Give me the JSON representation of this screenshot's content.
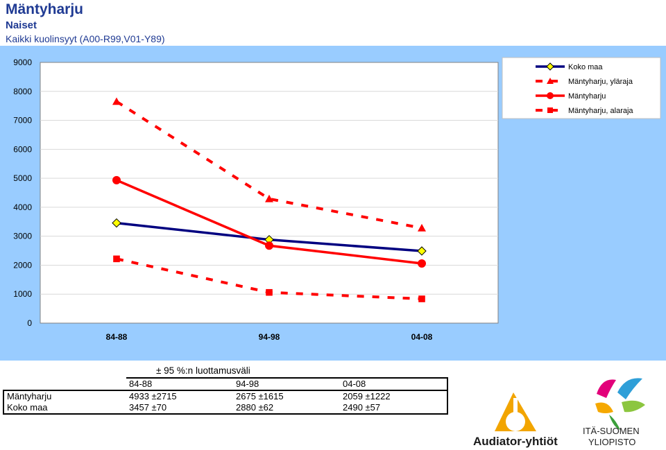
{
  "header": {
    "title": "Mäntyharju",
    "subtitle": "Naiset",
    "cause": "Kaikki kuolinsyyt (A00-R99,V01-Y89)"
  },
  "colors": {
    "background": "#99ccff",
    "plot_area": "#ffffff",
    "koko_maa": "#000080",
    "mantyharju": "#ff0000",
    "marker_diamond": "#ffff00"
  },
  "chart_data": {
    "type": "line",
    "categories": [
      "84-88",
      "94-98",
      "04-08"
    ],
    "ylim": [
      0,
      9000
    ],
    "yticks": [
      0,
      1000,
      2000,
      3000,
      4000,
      5000,
      6000,
      7000,
      8000,
      9000
    ],
    "grid": true,
    "legend_position": "top-right",
    "series": [
      {
        "name": "Koko maa",
        "values": [
          3457,
          2880,
          2490
        ],
        "color": "#000080",
        "style": "solid",
        "marker": "diamond"
      },
      {
        "name": "Mäntyharju, yläraja",
        "values": [
          7648,
          4290,
          3281
        ],
        "color": "#ff0000",
        "style": "dashed",
        "marker": "triangle"
      },
      {
        "name": "Mäntyharju",
        "values": [
          4933,
          2675,
          2059
        ],
        "color": "#ff0000",
        "style": "solid",
        "marker": "circle"
      },
      {
        "name": "Mäntyharju, alaraja",
        "values": [
          2218,
          1060,
          837
        ],
        "color": "#ff0000",
        "style": "dashed",
        "marker": "square"
      }
    ]
  },
  "ci_table": {
    "caption": "± 95 %:n luottamusväli",
    "headers": [
      "84-88",
      "94-98",
      "04-08"
    ],
    "rows": [
      {
        "label": "Mäntyharju",
        "values": [
          "4933 ±2715",
          "2675 ±1615",
          "2059 ±1222"
        ]
      },
      {
        "label": "Koko maa",
        "values": [
          "3457 ±70",
          "2880 ±62",
          "2490 ±57"
        ]
      }
    ]
  },
  "logos": {
    "audiator": "Audiator-yhtiöt",
    "uef_line1": "ITÄ-SUOMEN",
    "uef_line2": "YLIOPISTO"
  }
}
